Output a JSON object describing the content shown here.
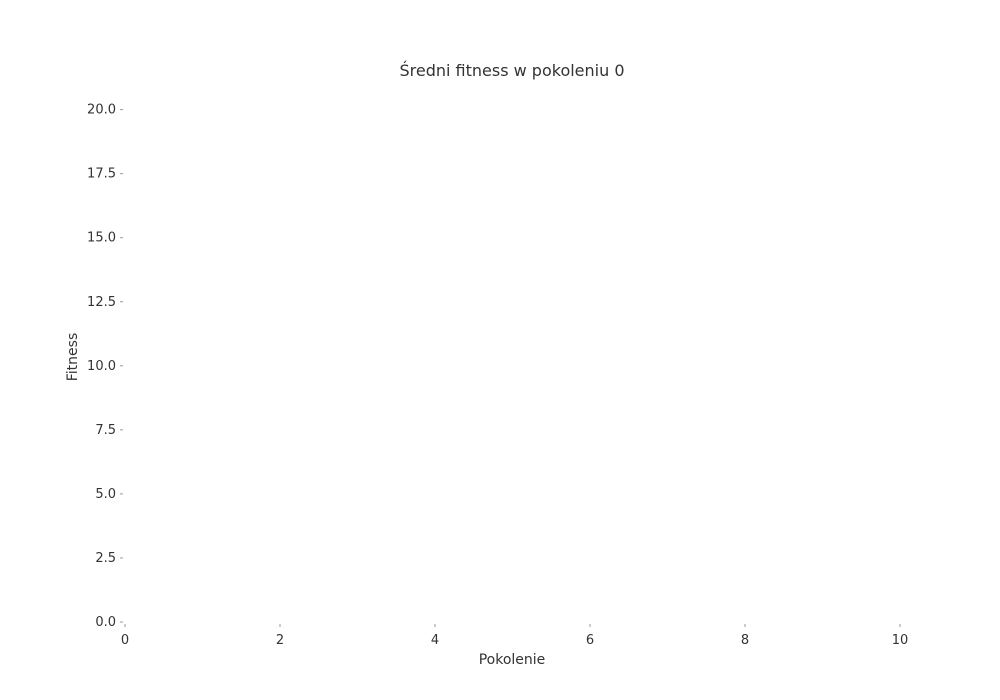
{
  "chart_data": {
    "type": "line",
    "title": "Średni fitness w pokoleniu 0",
    "xlabel": "Pokolenie",
    "ylabel": "Fitness",
    "xlim": [
      0,
      10
    ],
    "ylim": [
      0,
      21
    ],
    "x_ticks": [
      "0",
      "2",
      "4",
      "6",
      "8",
      "10"
    ],
    "y_ticks": [
      "0.0",
      "2.5",
      "5.0",
      "7.5",
      "10.0",
      "12.5",
      "15.0",
      "17.5",
      "20.0"
    ],
    "series": [],
    "grid": false,
    "legend": "none"
  },
  "colors": {
    "background": "#ffffff",
    "text": "#333333",
    "tick": "#999999"
  }
}
